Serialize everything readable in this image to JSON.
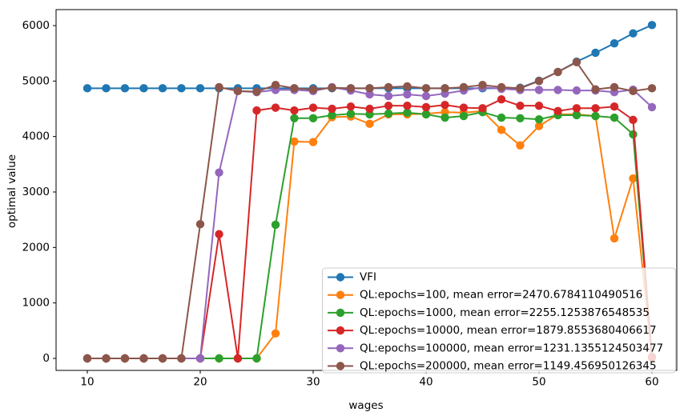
{
  "chart_data": {
    "type": "line",
    "title": "",
    "xlabel": "wages",
    "ylabel": "optimal value",
    "x_ticks": [
      10,
      20,
      30,
      40,
      50,
      60
    ],
    "y_ticks": [
      0,
      1000,
      2000,
      3000,
      4000,
      5000,
      6000
    ],
    "xlim": [
      7.2,
      62.2
    ],
    "ylim": [
      -216,
      6290
    ],
    "grid": false,
    "legend_position": "lower-right-inside",
    "marker": "o",
    "x": [
      10,
      11.67,
      13.33,
      15,
      16.67,
      18.33,
      20,
      21.67,
      23.33,
      25,
      26.67,
      28.33,
      30,
      31.67,
      33.33,
      35,
      36.67,
      38.33,
      40,
      41.67,
      43.33,
      45,
      46.67,
      48.33,
      50,
      51.67,
      53.33,
      55,
      56.67,
      58.33,
      60
    ],
    "series": [
      {
        "name": "VFI",
        "color": "#1f77b4",
        "values": [
          4870,
          4870,
          4870,
          4870,
          4870,
          4870,
          4870,
          4870,
          4870,
          4870,
          4870,
          4870,
          4870,
          4870,
          4870,
          4870,
          4870,
          4870,
          4870,
          4870,
          4870,
          4870,
          4870,
          4880,
          5005,
          5165,
          5350,
          5510,
          5680,
          5860,
          6010
        ]
      },
      {
        "name": "QL:epochs=100, mean error=2470.6784110490516",
        "color": "#ff7f0e",
        "values": [
          0,
          0,
          0,
          0,
          0,
          0,
          0,
          0,
          0,
          0,
          450,
          3910,
          3900,
          4350,
          4360,
          4230,
          4400,
          4400,
          4410,
          4440,
          4430,
          4460,
          4120,
          3840,
          4190,
          4400,
          4400,
          4370,
          2165,
          3245,
          10
        ]
      },
      {
        "name": "QL:epochs=1000, mean error=2255.1253876548535",
        "color": "#2ca02c",
        "values": [
          0,
          0,
          0,
          0,
          0,
          0,
          0,
          0,
          0,
          0,
          2410,
          4330,
          4330,
          4385,
          4410,
          4400,
          4415,
          4430,
          4400,
          4340,
          4370,
          4440,
          4340,
          4330,
          4310,
          4385,
          4385,
          4370,
          4340,
          4040,
          30
        ]
      },
      {
        "name": "QL:epochs=10000, mean error=1879.8553680406617",
        "color": "#d62728",
        "values": [
          0,
          0,
          0,
          0,
          0,
          0,
          0,
          2240,
          0,
          4470,
          4520,
          4470,
          4520,
          4500,
          4540,
          4500,
          4555,
          4555,
          4530,
          4570,
          4520,
          4510,
          4670,
          4555,
          4555,
          4460,
          4510,
          4510,
          4540,
          4300,
          20
        ]
      },
      {
        "name": "QL:epochs=100000, mean error=1231.1355124503477",
        "color": "#9467bd",
        "values": [
          0,
          0,
          0,
          0,
          0,
          0,
          0,
          3350,
          4820,
          4800,
          4840,
          4840,
          4820,
          4890,
          4830,
          4760,
          4730,
          4760,
          4730,
          4775,
          4830,
          4890,
          4860,
          4840,
          4840,
          4840,
          4830,
          4830,
          4800,
          4845,
          4530
        ]
      },
      {
        "name": "QL:epochs=200000, mean error=1149.456950126345",
        "color": "#8c564b",
        "values": [
          0,
          0,
          0,
          0,
          0,
          0,
          2420,
          4890,
          4820,
          4810,
          4930,
          4870,
          4845,
          4880,
          4870,
          4870,
          4890,
          4905,
          4870,
          4870,
          4890,
          4930,
          4890,
          4870,
          5000,
          5165,
          5340,
          4850,
          4890,
          4820,
          4870
        ]
      }
    ]
  }
}
